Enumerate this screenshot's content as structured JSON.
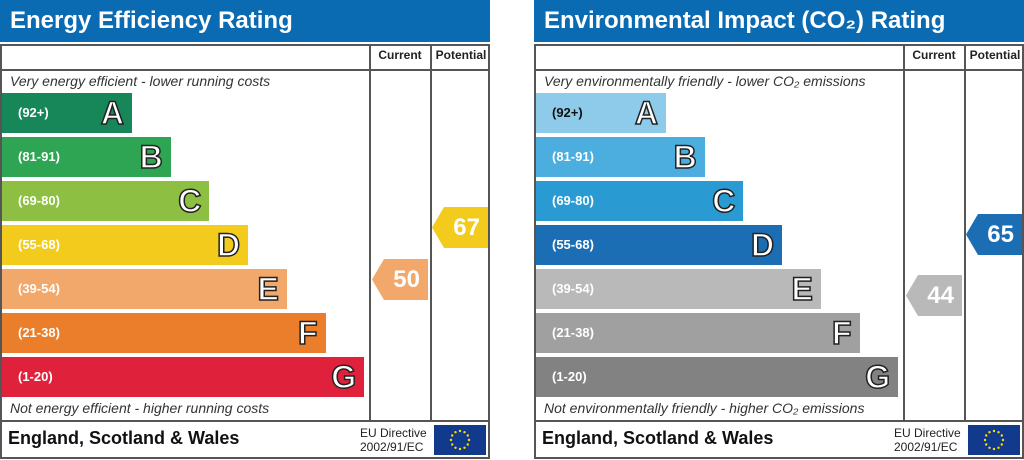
{
  "chart_data": [
    {
      "type": "bar",
      "title": "Energy Efficiency Rating",
      "columns": [
        "Current",
        "Potential"
      ],
      "top_note": "Very energy efficient - lower running costs",
      "bottom_note": "Not energy efficient - higher running costs",
      "bands": [
        {
          "letter": "A",
          "range": "(92+)",
          "color": "#17875a"
        },
        {
          "letter": "B",
          "range": "(81-91)",
          "color": "#2ea552"
        },
        {
          "letter": "C",
          "range": "(69-80)",
          "color": "#8dbf42"
        },
        {
          "letter": "D",
          "range": "(55-68)",
          "color": "#f3cb1d"
        },
        {
          "letter": "E",
          "range": "(39-54)",
          "color": "#f2a86b"
        },
        {
          "letter": "F",
          "range": "(21-38)",
          "color": "#eb7e2b"
        },
        {
          "letter": "G",
          "range": "(1-20)",
          "color": "#df213c"
        }
      ],
      "current": {
        "value": "50",
        "color": "#f2a86b"
      },
      "potential": {
        "value": "67",
        "color": "#f3cb1d"
      },
      "footer": "England, Scotland & Wales",
      "directive_line1": "EU Directive",
      "directive_line2": "2002/91/EC"
    },
    {
      "type": "bar",
      "title": "Environmental Impact (CO₂) Rating",
      "columns": [
        "Current",
        "Potential"
      ],
      "top_note": "Very environmentally friendly - lower CO₂ emissions",
      "bottom_note": "Not environmentally friendly - higher CO₂ emissions",
      "bands": [
        {
          "letter": "A",
          "range": "(92+)",
          "color": "#8ecbea"
        },
        {
          "letter": "B",
          "range": "(81-91)",
          "color": "#4caddf"
        },
        {
          "letter": "C",
          "range": "(69-80)",
          "color": "#2a9ad2"
        },
        {
          "letter": "D",
          "range": "(55-68)",
          "color": "#1b6db4"
        },
        {
          "letter": "E",
          "range": "(39-54)",
          "color": "#b9b9b9"
        },
        {
          "letter": "F",
          "range": "(21-38)",
          "color": "#a0a0a0"
        },
        {
          "letter": "G",
          "range": "(1-20)",
          "color": "#828282"
        }
      ],
      "current": {
        "value": "44",
        "color": "#b9b9b9"
      },
      "potential": {
        "value": "65",
        "color": "#1b6db4"
      },
      "footer": "England, Scotland & Wales",
      "directive_line1": "EU Directive",
      "directive_line2": "2002/91/EC"
    }
  ]
}
